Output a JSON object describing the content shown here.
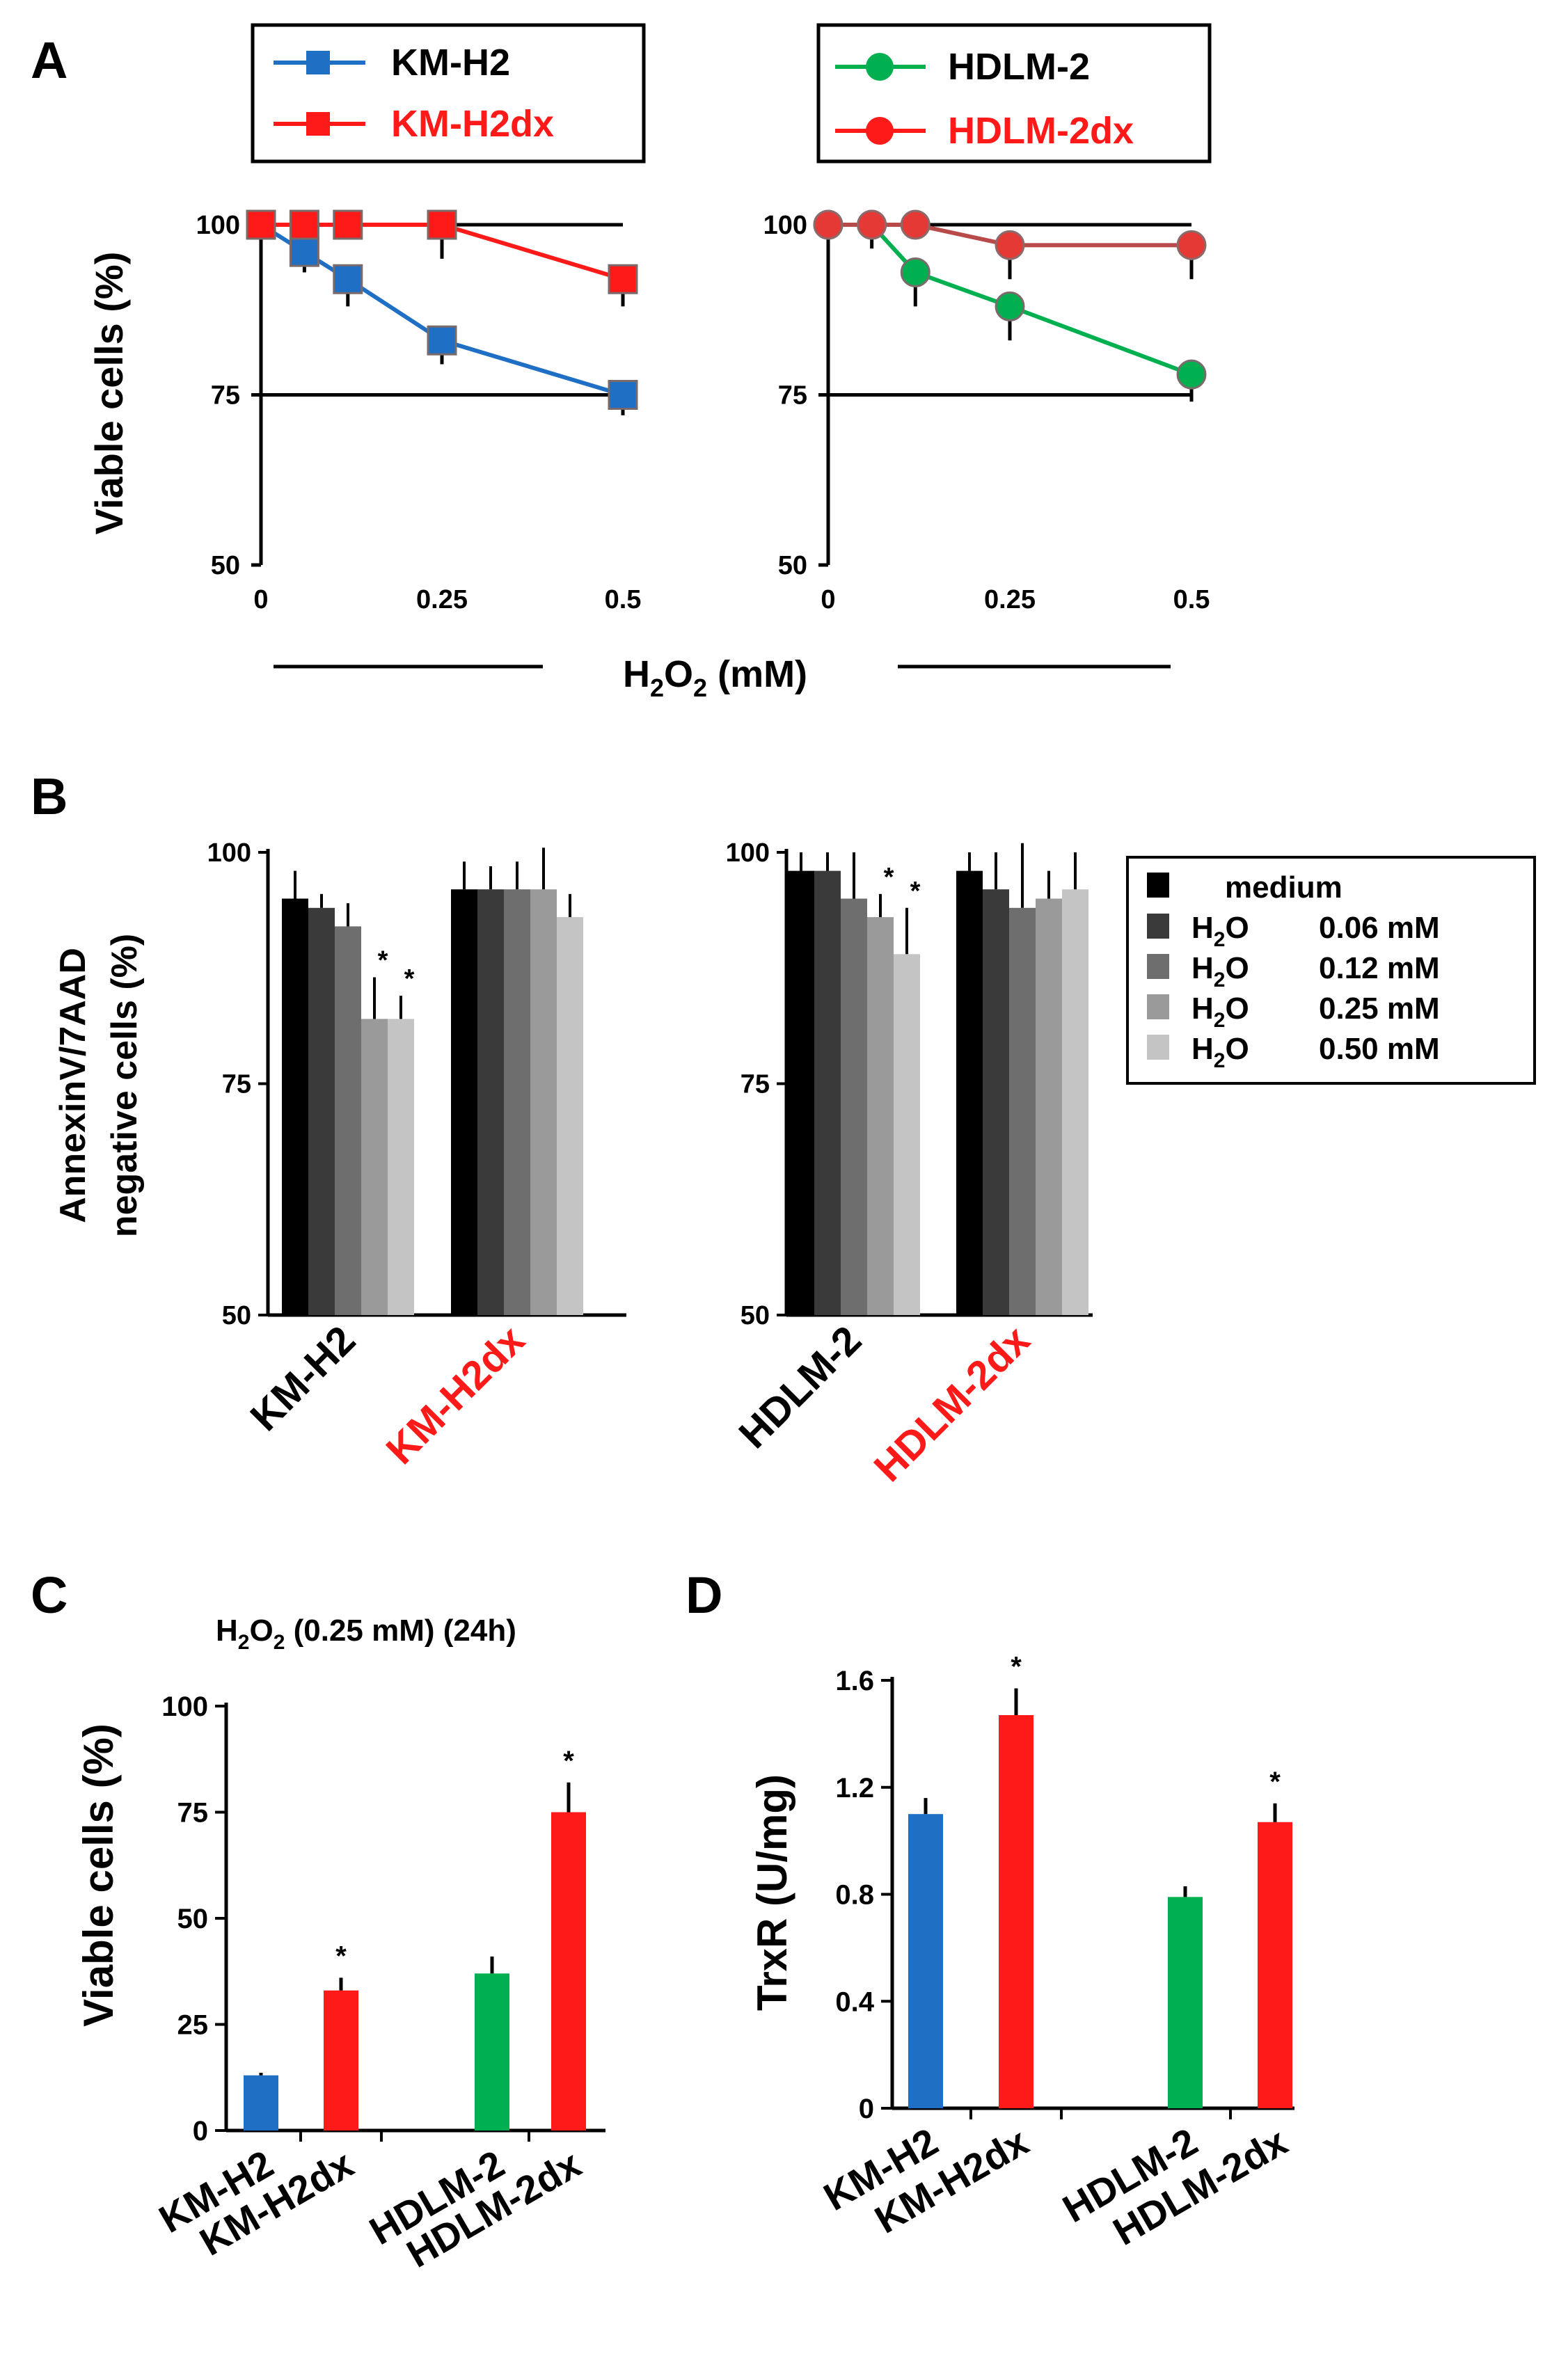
{
  "panel_labels": {
    "a": "A",
    "b": "B",
    "c": "C",
    "d": "D"
  },
  "colors": {
    "blue": "#1f6fc5",
    "red": "#ff1a1a",
    "green": "#00b050",
    "darkred": "#b84a4a",
    "black": "#000000",
    "gray1": "#3a3a3a",
    "gray2": "#6e6e6e",
    "gray3": "#9a9a9a",
    "gray4": "#c4c4c4"
  },
  "panel_a": {
    "xlabel": {
      "prefix": "H",
      "sub1": "2",
      "mid": "O",
      "sub2": "2",
      "suffix": " (mM)"
    },
    "legend_left": [
      "KM-H2",
      "KM-H2dx"
    ],
    "legend_right": [
      "HDLM-2",
      "HDLM-2dx"
    ]
  },
  "panel_b": {
    "ylabel_line1": "AnnexinV/7AAD",
    "ylabel_line2": "negative cells (%)",
    "legend": {
      "medium": "medium",
      "h2o2_prefix": "H",
      "h2o2_sub": "2",
      "h2o2_mid": "O",
      "conc": [
        "0.06 mM",
        "0.12 mM",
        "0.25 mM",
        "0.50 mM"
      ]
    }
  },
  "panel_c": {
    "title": {
      "prefix": "H",
      "sub1": "2",
      "mid": "O",
      "sub2": "2",
      "suffix": " (0.25 mM) (24h)"
    }
  },
  "chart_data": [
    {
      "id": "A-left",
      "type": "line",
      "ylabel": "Viable cells (%)",
      "xlabel": "H2O2 (mM)",
      "ylim": [
        50,
        100
      ],
      "yticks": [
        50,
        75,
        100
      ],
      "xlim": [
        0,
        0.5
      ],
      "xticks": [
        "0",
        "0.25",
        "0.5"
      ],
      "series": [
        {
          "name": "KM-H2",
          "color": "#1f6fc5",
          "x": [
            0,
            0.06,
            0.12,
            0.25,
            0.5
          ],
          "values": [
            100,
            96,
            92,
            83,
            75
          ],
          "err": [
            0,
            3,
            4,
            3.5,
            3
          ]
        },
        {
          "name": "KM-H2dx",
          "color": "#ff1a1a",
          "x": [
            0,
            0.06,
            0.12,
            0.25,
            0.5
          ],
          "values": [
            100,
            100,
            100,
            100,
            92
          ],
          "err": [
            0,
            0,
            0,
            5,
            4
          ]
        }
      ]
    },
    {
      "id": "A-right",
      "type": "line",
      "ylabel": "Viable cells (%)",
      "xlabel": "H2O2 (mM)",
      "ylim": [
        50,
        100
      ],
      "yticks": [
        50,
        75,
        100
      ],
      "xlim": [
        0,
        0.5
      ],
      "xticks": [
        "0",
        "0.25",
        "0.5"
      ],
      "series": [
        {
          "name": "HDLM-2",
          "color": "#00b050",
          "x": [
            0,
            0.06,
            0.12,
            0.25,
            0.5
          ],
          "values": [
            100,
            100,
            93,
            88,
            78
          ],
          "err": [
            0,
            0,
            5,
            5,
            4
          ]
        },
        {
          "name": "HDLM-2dx",
          "color": "#b84a4a",
          "x": [
            0,
            0.06,
            0.12,
            0.25,
            0.5
          ],
          "values": [
            100,
            100,
            100,
            97,
            97
          ],
          "err": [
            0,
            3.5,
            0,
            5,
            5
          ]
        }
      ]
    },
    {
      "id": "B-left",
      "type": "bar",
      "ylabel": "AnnexinV/7AAD negative cells (%)",
      "ylim": [
        50,
        100
      ],
      "yticks": [
        50,
        75,
        100
      ],
      "groups": [
        "KM-H2",
        "KM-H2dx"
      ],
      "group_colors": [
        "#000000",
        "#ff1a1a"
      ],
      "series": [
        {
          "name": "medium",
          "color": "#000000",
          "values": [
            95,
            96
          ],
          "err": [
            3,
            3
          ]
        },
        {
          "name": "H2O2 0.06 mM",
          "color": "#3a3a3a",
          "values": [
            94,
            96
          ],
          "err": [
            1.5,
            2.5
          ]
        },
        {
          "name": "H2O2 0.12 mM",
          "color": "#6e6e6e",
          "values": [
            92,
            96
          ],
          "err": [
            2.5,
            3
          ]
        },
        {
          "name": "H2O2 0.25 mM",
          "color": "#9a9a9a",
          "values": [
            82,
            96
          ],
          "err": [
            4.5,
            4.5
          ]
        },
        {
          "name": "H2O2 0.50 mM",
          "color": "#c4c4c4",
          "values": [
            82,
            93
          ],
          "err": [
            2.5,
            2.5
          ]
        }
      ],
      "significance": [
        [
          false,
          false,
          false,
          true,
          true
        ],
        [
          false,
          false,
          false,
          false,
          false
        ]
      ]
    },
    {
      "id": "B-right",
      "type": "bar",
      "ylabel": "AnnexinV/7AAD negative cells (%)",
      "ylim": [
        50,
        100
      ],
      "yticks": [
        50,
        75,
        100
      ],
      "groups": [
        "HDLM-2",
        "HDLM-2dx"
      ],
      "group_colors": [
        "#000000",
        "#ff1a1a"
      ],
      "series": [
        {
          "name": "medium",
          "color": "#000000",
          "values": [
            98,
            98
          ],
          "err": [
            2,
            2
          ]
        },
        {
          "name": "H2O2 0.06 mM",
          "color": "#3a3a3a",
          "values": [
            98,
            96
          ],
          "err": [
            2,
            4
          ]
        },
        {
          "name": "H2O2 0.12 mM",
          "color": "#6e6e6e",
          "values": [
            95,
            94
          ],
          "err": [
            5,
            7
          ]
        },
        {
          "name": "H2O2 0.25 mM",
          "color": "#9a9a9a",
          "values": [
            93,
            95
          ],
          "err": [
            2.5,
            3
          ]
        },
        {
          "name": "H2O2 0.50 mM",
          "color": "#c4c4c4",
          "values": [
            89,
            96
          ],
          "err": [
            5,
            4
          ]
        }
      ],
      "significance": [
        [
          false,
          false,
          false,
          true,
          true
        ],
        [
          false,
          false,
          false,
          false,
          false
        ]
      ]
    },
    {
      "id": "C",
      "type": "bar",
      "title": "H2O2 (0.25 mM) (24h)",
      "ylabel": "Viable cells (%)",
      "ylim": [
        0,
        100
      ],
      "yticks": [
        0,
        25,
        50,
        75,
        100
      ],
      "categories": [
        "KM-H2",
        "KM-H2dx",
        "HDLM-2",
        "HDLM-2dx"
      ],
      "values": [
        13,
        33,
        37,
        75
      ],
      "err": [
        0.6,
        3,
        4,
        7
      ],
      "colors": [
        "#1f6fc5",
        "#ff1a1a",
        "#00b050",
        "#ff1a1a"
      ],
      "significance": [
        false,
        true,
        false,
        true
      ]
    },
    {
      "id": "D",
      "type": "bar",
      "ylabel": "TrxR (U/mg)",
      "ylim": [
        0,
        1.6
      ],
      "yticks": [
        "0",
        "0.4",
        "0.8",
        "1.2",
        "1.6"
      ],
      "categories": [
        "KM-H2",
        "KM-H2dx",
        "HDLM-2",
        "HDLM-2dx"
      ],
      "values": [
        1.1,
        1.47,
        0.79,
        1.07
      ],
      "err": [
        0.06,
        0.1,
        0.04,
        0.07
      ],
      "colors": [
        "#1f6fc5",
        "#ff1a1a",
        "#00b050",
        "#ff1a1a"
      ],
      "significance": [
        false,
        true,
        false,
        true
      ]
    }
  ]
}
